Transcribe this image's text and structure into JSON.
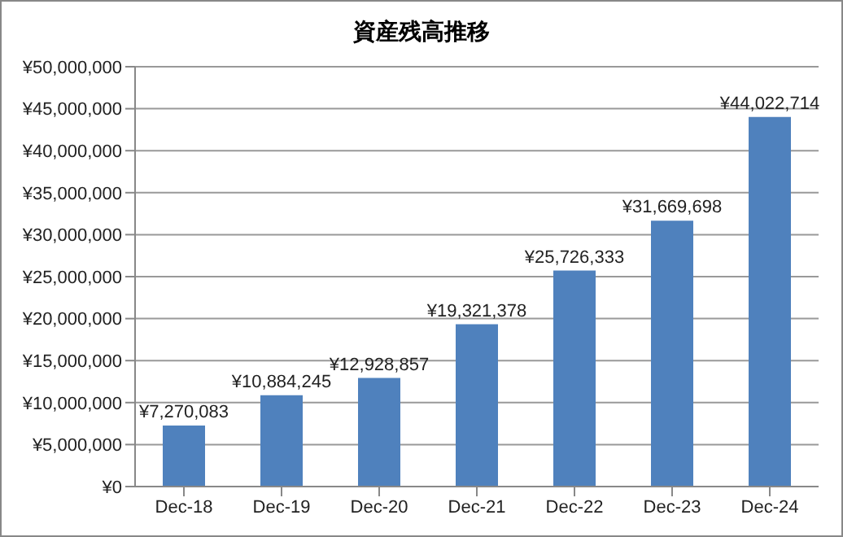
{
  "chart_data": {
    "type": "bar",
    "title": "資産残高推移",
    "categories": [
      "Dec-18",
      "Dec-19",
      "Dec-20",
      "Dec-21",
      "Dec-22",
      "Dec-23",
      "Dec-24"
    ],
    "values": [
      7270083,
      10884245,
      12928857,
      19321378,
      25726333,
      31669698,
      44022714
    ],
    "value_labels": [
      "¥7,270,083",
      "¥10,884,245",
      "¥12,928,857",
      "¥19,321,378",
      "¥25,726,333",
      "¥31,669,698",
      "¥44,022,714"
    ],
    "color": "#4f81bd",
    "ylim": [
      0,
      50000000
    ],
    "yticks": [
      {
        "value": 0,
        "label": "¥0"
      },
      {
        "value": 5000000,
        "label": "¥5,000,000"
      },
      {
        "value": 10000000,
        "label": "¥10,000,000"
      },
      {
        "value": 15000000,
        "label": "¥15,000,000"
      },
      {
        "value": 20000000,
        "label": "¥20,000,000"
      },
      {
        "value": 25000000,
        "label": "¥25,000,000"
      },
      {
        "value": 30000000,
        "label": "¥30,000,000"
      },
      {
        "value": 35000000,
        "label": "¥35,000,000"
      },
      {
        "value": 40000000,
        "label": "¥40,000,000"
      },
      {
        "value": 45000000,
        "label": "¥45,000,000"
      },
      {
        "value": 50000000,
        "label": "¥50,000,000"
      }
    ],
    "grid": "y"
  }
}
